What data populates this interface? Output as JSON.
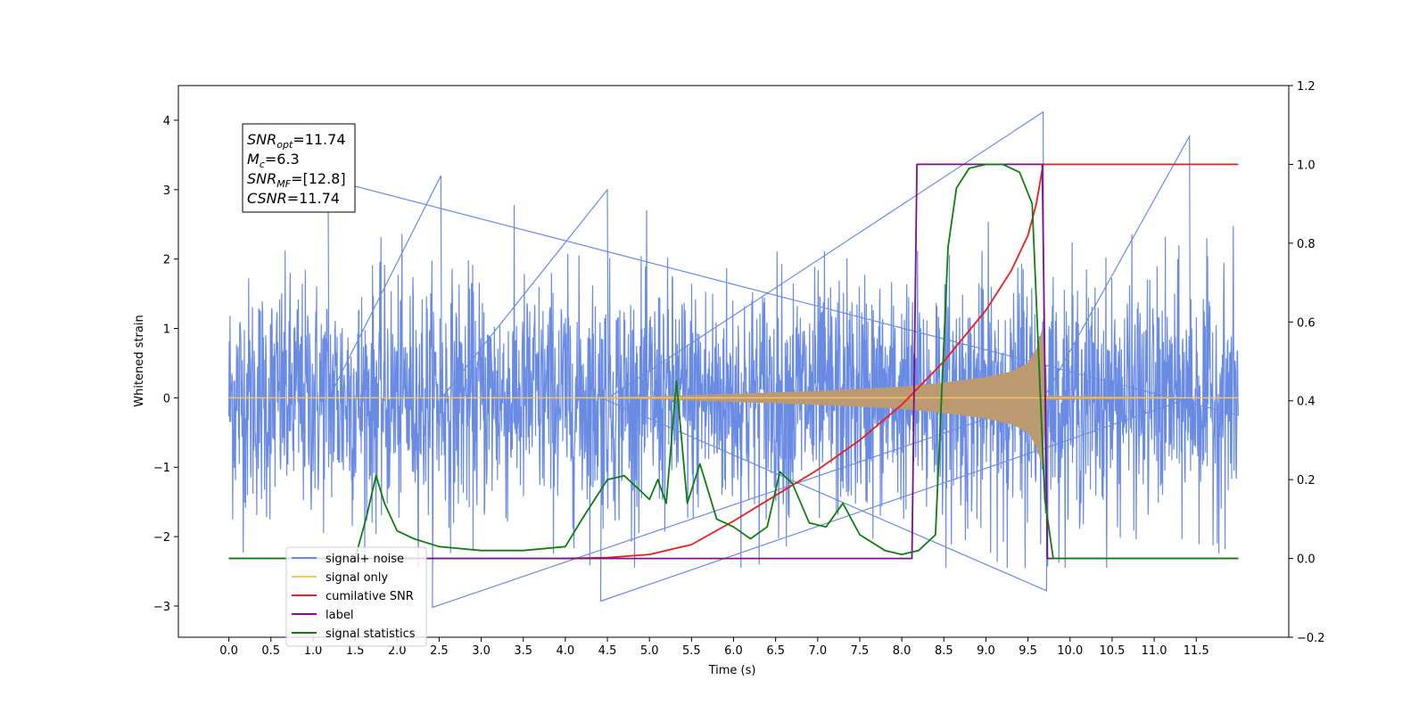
{
  "chart_data": {
    "type": "line",
    "xlabel": "Time (s)",
    "ylabel_left": "Whitened strain",
    "ylabel_right": "",
    "xlim": [
      -0.6,
      12.6
    ],
    "ylim_left": [
      -3.45,
      4.5
    ],
    "ylim_right": [
      -0.2,
      1.2
    ],
    "x_ticks": [
      "0.0",
      "0.5",
      "1.0",
      "1.5",
      "2.0",
      "2.5",
      "3.0",
      "3.5",
      "4.0",
      "4.5",
      "5.0",
      "5.5",
      "6.0",
      "6.5",
      "7.0",
      "7.5",
      "8.0",
      "8.5",
      "9.0",
      "9.5",
      "10.0",
      "10.5",
      "11.0",
      "11.5"
    ],
    "y_ticks_left": [
      "−3",
      "−2",
      "−1",
      "0",
      "1",
      "2",
      "3",
      "4"
    ],
    "y_ticks_right": [
      "−0.2",
      "0.0",
      "0.2",
      "0.4",
      "0.6",
      "0.8",
      "1.0",
      "1.2"
    ],
    "grid": false,
    "legend_position": "lower-left",
    "annotation": {
      "lines": [
        {
          "base": "SNR",
          "sub": "opt",
          "value": "=11.74"
        },
        {
          "base": "M",
          "sub": "c",
          "value": "=6.3"
        },
        {
          "base": "SNR",
          "sub": "MF",
          "value": "=[12.8]"
        },
        {
          "base": "CSNR",
          "sub": "",
          "value": "=11.74"
        }
      ]
    },
    "series": [
      {
        "name": "signal+ noise",
        "axis": "left",
        "color": "#6a8be3",
        "x_range": [
          0.0,
          12.0
        ],
        "amplitude_range": [
          -2.75,
          4.12
        ],
        "peak_values": [
          [
            1.18,
            3.15
          ],
          [
            2.52,
            3.2
          ],
          [
            4.5,
            3.0
          ],
          [
            9.68,
            4.12
          ],
          [
            11.42,
            3.77
          ],
          [
            4.42,
            -2.93
          ],
          [
            9.72,
            -2.78
          ],
          [
            2.42,
            -3.02
          ]
        ]
      },
      {
        "name": "signal only",
        "axis": "left",
        "color": "#f5c169",
        "x_range": [
          0.0,
          12.0
        ],
        "envelope": [
          [
            0.0,
            0.0
          ],
          [
            4.0,
            0.005
          ],
          [
            5.0,
            0.02
          ],
          [
            6.0,
            0.06
          ],
          [
            7.0,
            0.1
          ],
          [
            8.0,
            0.16
          ],
          [
            8.5,
            0.22
          ],
          [
            9.0,
            0.3
          ],
          [
            9.3,
            0.38
          ],
          [
            9.5,
            0.5
          ],
          [
            9.6,
            0.7
          ],
          [
            9.67,
            1.0
          ],
          [
            9.72,
            0.03
          ],
          [
            12.0,
            0.0
          ]
        ]
      },
      {
        "name": "cumilative SNR",
        "axis": "right",
        "color": "#ee1c1c",
        "x": [
          0.0,
          4.0,
          4.5,
          5.0,
          5.5,
          6.0,
          6.5,
          7.0,
          7.5,
          8.0,
          8.5,
          9.0,
          9.3,
          9.5,
          9.6,
          9.68,
          12.0
        ],
        "y": [
          0.0,
          0.0,
          0.002,
          0.01,
          0.035,
          0.095,
          0.16,
          0.225,
          0.3,
          0.39,
          0.5,
          0.63,
          0.73,
          0.82,
          0.9,
          1.0,
          1.0
        ]
      },
      {
        "name": "label",
        "axis": "right",
        "color": "#7b0f8c",
        "x": [
          0.0,
          8.12,
          8.18,
          9.67,
          9.73,
          12.0
        ],
        "y": [
          0.0,
          0.0,
          1.0,
          1.0,
          0.0,
          0.0
        ]
      },
      {
        "name": "signal statistics",
        "axis": "right",
        "color": "#107d10",
        "x": [
          0.0,
          1.5,
          1.63,
          1.75,
          1.85,
          2.0,
          2.2,
          2.5,
          3.0,
          3.5,
          4.0,
          4.2,
          4.5,
          4.7,
          4.9,
          5.0,
          5.1,
          5.2,
          5.32,
          5.45,
          5.6,
          5.8,
          6.0,
          6.2,
          6.4,
          6.55,
          6.7,
          6.9,
          7.1,
          7.3,
          7.5,
          7.8,
          8.0,
          8.2,
          8.4,
          8.55,
          8.65,
          8.8,
          9.0,
          9.2,
          9.4,
          9.55,
          9.62,
          9.7,
          9.8,
          12.0
        ],
        "y": [
          0.0,
          0.0,
          0.1,
          0.21,
          0.14,
          0.07,
          0.05,
          0.03,
          0.02,
          0.02,
          0.03,
          0.1,
          0.2,
          0.21,
          0.17,
          0.15,
          0.2,
          0.14,
          0.45,
          0.14,
          0.24,
          0.1,
          0.08,
          0.05,
          0.08,
          0.22,
          0.19,
          0.09,
          0.08,
          0.14,
          0.06,
          0.02,
          0.01,
          0.02,
          0.06,
          0.79,
          0.94,
          0.99,
          1.0,
          1.0,
          0.98,
          0.9,
          0.55,
          0.15,
          0.0,
          0.0
        ]
      }
    ]
  }
}
